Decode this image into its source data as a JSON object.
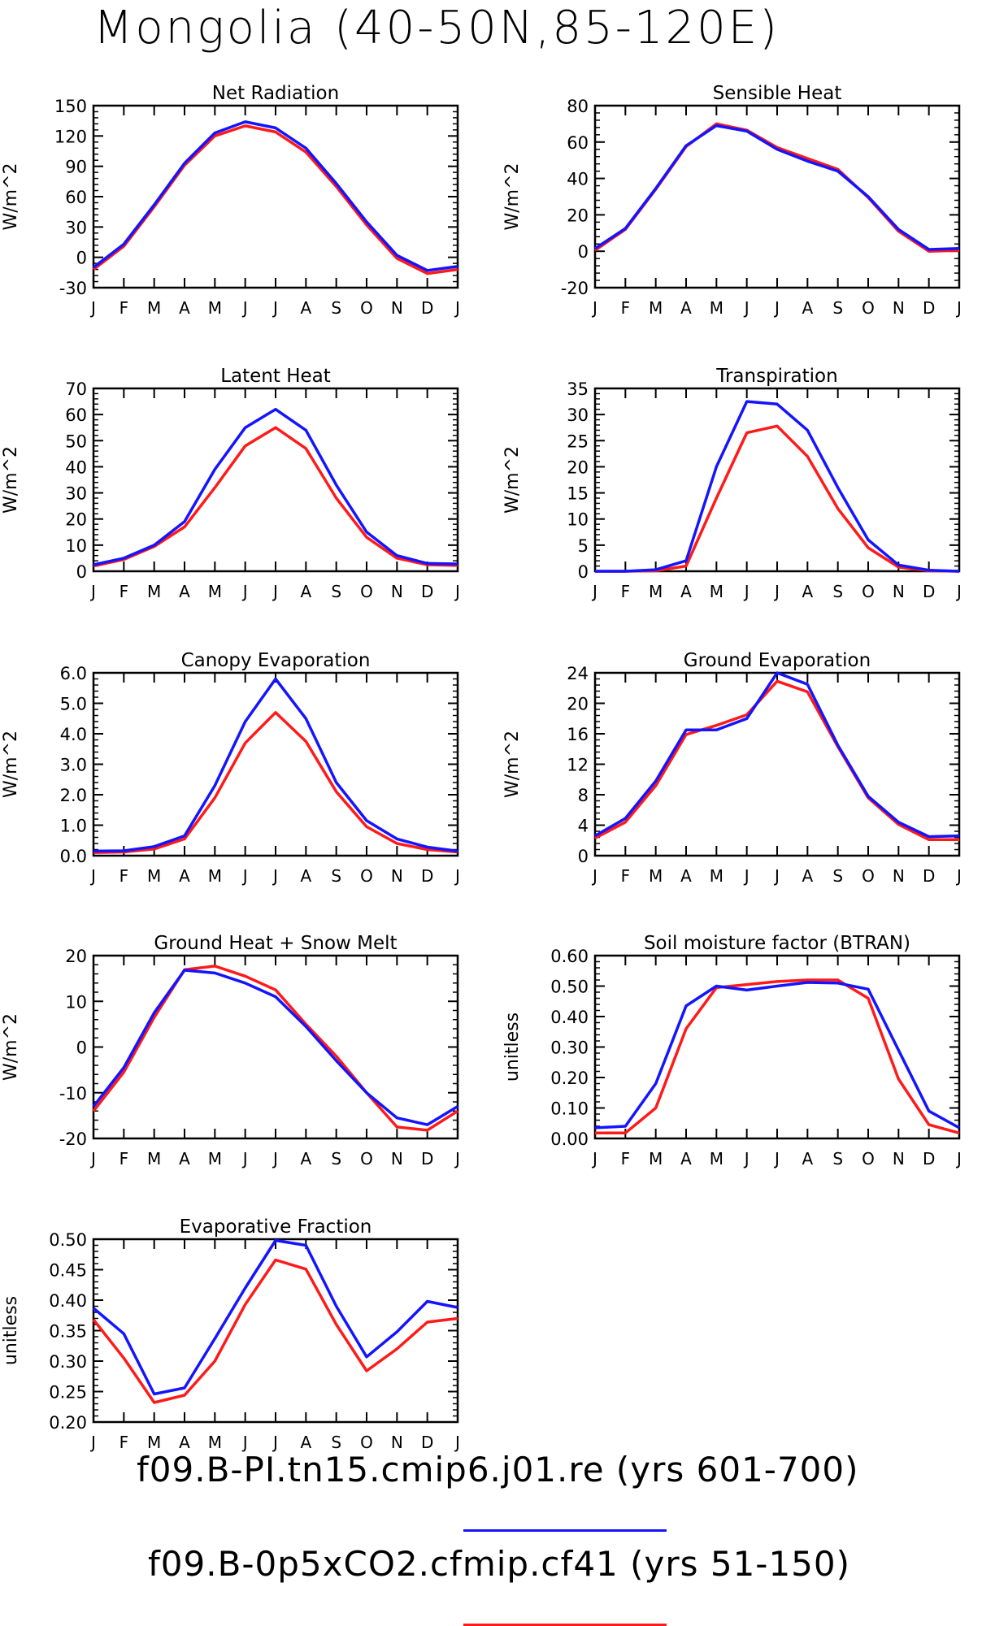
{
  "title": "Mongolia (40-50N,85-120E)",
  "colors": {
    "run1": "#1414ff",
    "run2": "#ff1a1a"
  },
  "legend": [
    {
      "label": "f09.B-PI.tn15.cmip6.j01.re (yrs 601-700)",
      "color": "#1414ff"
    },
    {
      "label": "f09.B-0p5xCO2.cfmip.cf41 (yrs 51-150)",
      "color": "#ff1a1a"
    }
  ],
  "chart_data": [
    {
      "type": "line",
      "title": "Net Radiation",
      "ylabel": "W/m^2",
      "x": [
        "J",
        "F",
        "M",
        "A",
        "M",
        "J",
        "J",
        "A",
        "S",
        "O",
        "N",
        "D",
        "J"
      ],
      "yticks": [
        "-30",
        "0",
        "30",
        "60",
        "90",
        "120",
        "150"
      ],
      "ylim": [
        -30,
        150
      ],
      "series": [
        {
          "color": "#1414ff",
          "values": [
            -10,
            13,
            52,
            93,
            123,
            134,
            128,
            108,
            73,
            35,
            2,
            -13,
            -9
          ]
        },
        {
          "color": "#ff1a1a",
          "values": [
            -12,
            11,
            50,
            91,
            120,
            130,
            124,
            104,
            70,
            32,
            -1,
            -16,
            -12
          ]
        }
      ]
    },
    {
      "type": "line",
      "title": "Sensible Heat",
      "ylabel": "W/m^2",
      "x": [
        "J",
        "F",
        "M",
        "A",
        "M",
        "J",
        "J",
        "A",
        "S",
        "O",
        "N",
        "D",
        "J"
      ],
      "yticks": [
        "-20",
        "0",
        "20",
        "40",
        "60",
        "80"
      ],
      "ylim": [
        -20,
        80
      ],
      "series": [
        {
          "color": "#1414ff",
          "values": [
            1.5,
            12.5,
            34.5,
            58,
            69,
            66,
            56,
            49.5,
            44,
            30,
            12,
            1,
            1.5
          ]
        },
        {
          "color": "#ff1a1a",
          "values": [
            0.5,
            12,
            34,
            57.5,
            70,
            66.5,
            57,
            51,
            45,
            29.5,
            11,
            0,
            0.5
          ]
        }
      ]
    },
    {
      "type": "line",
      "title": "Latent Heat",
      "ylabel": "W/m^2",
      "x": [
        "J",
        "F",
        "M",
        "A",
        "M",
        "J",
        "J",
        "A",
        "S",
        "O",
        "N",
        "D",
        "J"
      ],
      "yticks": [
        "0",
        "10",
        "20",
        "30",
        "40",
        "50",
        "60",
        "70"
      ],
      "ylim": [
        0,
        70
      ],
      "series": [
        {
          "color": "#1414ff",
          "values": [
            2.5,
            5,
            10,
            19,
            39,
            55,
            62,
            54,
            33,
            15,
            6,
            3,
            2.8
          ]
        },
        {
          "color": "#ff1a1a",
          "values": [
            2,
            4.5,
            9.5,
            17,
            32,
            48,
            55,
            47,
            28,
            13,
            5,
            2.5,
            2.2
          ]
        }
      ]
    },
    {
      "type": "line",
      "title": "Transpiration",
      "ylabel": "W/m^2",
      "x": [
        "J",
        "F",
        "M",
        "A",
        "M",
        "J",
        "J",
        "A",
        "S",
        "O",
        "N",
        "D",
        "J"
      ],
      "yticks": [
        "0",
        "5",
        "10",
        "15",
        "20",
        "25",
        "30",
        "35"
      ],
      "ylim": [
        0,
        35
      ],
      "series": [
        {
          "color": "#1414ff",
          "values": [
            0,
            0,
            0.3,
            2,
            20,
            32.5,
            32,
            27,
            16,
            6,
            1.2,
            0.2,
            0
          ]
        },
        {
          "color": "#ff1a1a",
          "values": [
            0,
            0,
            0.1,
            1,
            14,
            26.5,
            27.8,
            22,
            12,
            4.5,
            0.8,
            0.1,
            0
          ]
        }
      ]
    },
    {
      "type": "line",
      "title": "Canopy Evaporation",
      "ylabel": "W/m^2",
      "x": [
        "J",
        "F",
        "M",
        "A",
        "M",
        "J",
        "J",
        "A",
        "S",
        "O",
        "N",
        "D",
        "J"
      ],
      "yticks": [
        "0.0",
        "1.0",
        "2.0",
        "3.0",
        "4.0",
        "5.0",
        "6.0"
      ],
      "ylim": [
        0,
        6
      ],
      "series": [
        {
          "color": "#1414ff",
          "values": [
            0.15,
            0.16,
            0.3,
            0.65,
            2.3,
            4.4,
            5.8,
            4.5,
            2.4,
            1.15,
            0.55,
            0.28,
            0.15
          ]
        },
        {
          "color": "#ff1a1a",
          "values": [
            0.1,
            0.12,
            0.22,
            0.55,
            1.9,
            3.7,
            4.7,
            3.75,
            2.1,
            0.95,
            0.4,
            0.2,
            0.12
          ]
        }
      ]
    },
    {
      "type": "line",
      "title": "Ground Evaporation",
      "ylabel": "W/m^2",
      "x": [
        "J",
        "F",
        "M",
        "A",
        "M",
        "J",
        "J",
        "A",
        "S",
        "O",
        "N",
        "D",
        "J"
      ],
      "yticks": [
        "0",
        "4",
        "8",
        "12",
        "16",
        "20",
        "24"
      ],
      "ylim": [
        0,
        24
      ],
      "series": [
        {
          "color": "#1414ff",
          "values": [
            2.6,
            4.9,
            9.8,
            16.5,
            16.5,
            18,
            24,
            22.5,
            14.5,
            7.8,
            4.4,
            2.5,
            2.6
          ]
        },
        {
          "color": "#ff1a1a",
          "values": [
            2.3,
            4.4,
            9.2,
            15.9,
            17.1,
            18.5,
            22.9,
            21.5,
            14.3,
            7.6,
            4.1,
            2.1,
            2.1
          ]
        }
      ]
    },
    {
      "type": "line",
      "title": "Ground Heat + Snow Melt",
      "ylabel": "W/m^2",
      "x": [
        "J",
        "F",
        "M",
        "A",
        "M",
        "J",
        "J",
        "A",
        "S",
        "O",
        "N",
        "D",
        "J"
      ],
      "yticks": [
        "-20",
        "-10",
        "0",
        "10",
        "20"
      ],
      "ylim": [
        -20,
        20
      ],
      "series": [
        {
          "color": "#1414ff",
          "values": [
            -13,
            -4.5,
            7.5,
            16.8,
            16.2,
            14,
            11,
            4.5,
            -3,
            -10,
            -15.5,
            -17,
            -13
          ]
        },
        {
          "color": "#ff1a1a",
          "values": [
            -14,
            -5.5,
            6.5,
            16.9,
            17.7,
            15.5,
            12.5,
            5,
            -2,
            -10,
            -17.5,
            -18.2,
            -14
          ]
        }
      ]
    },
    {
      "type": "line",
      "title": "Soil moisture factor (BTRAN)",
      "ylabel": "unitless",
      "x": [
        "J",
        "F",
        "M",
        "A",
        "M",
        "J",
        "J",
        "A",
        "S",
        "O",
        "N",
        "D",
        "J"
      ],
      "yticks": [
        "0.00",
        "0.10",
        "0.20",
        "0.30",
        "0.40",
        "0.50",
        "0.60"
      ],
      "ylim": [
        0,
        0.6
      ],
      "series": [
        {
          "color": "#1414ff",
          "values": [
            0.035,
            0.04,
            0.18,
            0.435,
            0.5,
            0.487,
            0.5,
            0.512,
            0.51,
            0.49,
            0.29,
            0.09,
            0.035
          ]
        },
        {
          "color": "#ff1a1a",
          "values": [
            0.018,
            0.018,
            0.1,
            0.36,
            0.495,
            0.505,
            0.515,
            0.52,
            0.52,
            0.46,
            0.195,
            0.045,
            0.018
          ]
        }
      ]
    },
    {
      "type": "line",
      "title": "Evaporative Fraction",
      "ylabel": "unitless",
      "x": [
        "J",
        "F",
        "M",
        "A",
        "M",
        "J",
        "J",
        "A",
        "S",
        "O",
        "N",
        "D",
        "J"
      ],
      "yticks": [
        "0.20",
        "0.25",
        "0.30",
        "0.35",
        "0.40",
        "0.45",
        "0.50"
      ],
      "ylim": [
        0.2,
        0.5
      ],
      "series": [
        {
          "color": "#1414ff",
          "values": [
            0.387,
            0.345,
            0.246,
            0.256,
            0.337,
            0.42,
            0.498,
            0.49,
            0.39,
            0.307,
            0.348,
            0.398,
            0.388
          ]
        },
        {
          "color": "#ff1a1a",
          "values": [
            0.368,
            0.305,
            0.232,
            0.244,
            0.3,
            0.393,
            0.466,
            0.451,
            0.36,
            0.284,
            0.32,
            0.364,
            0.37
          ]
        }
      ]
    }
  ]
}
